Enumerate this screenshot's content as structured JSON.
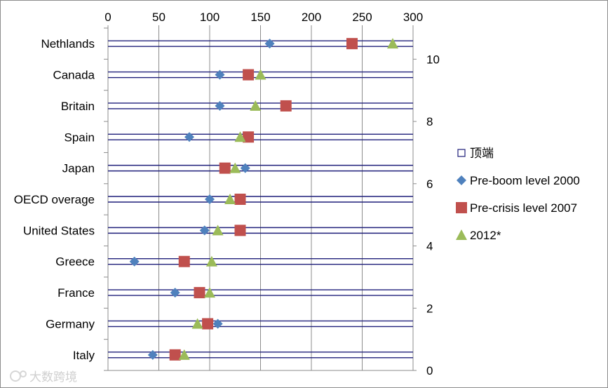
{
  "chart_data": {
    "type": "scatter",
    "categories": [
      "Nethlands",
      "Canada",
      "Britain",
      "Spain",
      "Japan",
      "OECD overage",
      "United States",
      "Greece",
      "France",
      "Germany",
      "Italy"
    ],
    "xlim": [
      0,
      300
    ],
    "x_ticks": [
      "0",
      "50",
      "100",
      "150",
      "200",
      "250",
      "300"
    ],
    "y2lim": [
      0,
      11
    ],
    "y2_ticks": [
      "0",
      "2",
      "4",
      "6",
      "8",
      "10"
    ],
    "grid": "vertical",
    "legend_position": "right",
    "legend": [
      {
        "name": "顶端",
        "marker": "open-square",
        "color": "#1f1f7a"
      },
      {
        "name": "Pre-boom level 2000",
        "marker": "diamond",
        "color": "#4f81bd"
      },
      {
        "name": "Pre-crisis level 2007",
        "marker": "square",
        "color": "#c0504d"
      },
      {
        "name": "2012*",
        "marker": "triangle",
        "color": "#9bbb59"
      }
    ],
    "series": [
      {
        "name": "Pre-boom level 2000",
        "marker": "diamond",
        "color": "#4f81bd",
        "values": [
          159,
          110,
          110,
          80,
          135,
          100,
          95,
          26,
          66,
          108,
          44
        ]
      },
      {
        "name": "Pre-crisis level 2007",
        "marker": "square",
        "color": "#c0504d",
        "values": [
          240,
          138,
          175,
          138,
          115,
          130,
          130,
          75,
          90,
          98,
          66
        ]
      },
      {
        "name": "2012*",
        "marker": "triangle",
        "color": "#9bbb59",
        "values": [
          280,
          150,
          145,
          130,
          125,
          120,
          108,
          102,
          100,
          88,
          75
        ]
      }
    ]
  },
  "watermark": {
    "text": "大数跨境"
  },
  "colors": {
    "band_line": "#1f1f7a",
    "grid": "#8c8c8c",
    "frame": "#8c8c8c"
  }
}
